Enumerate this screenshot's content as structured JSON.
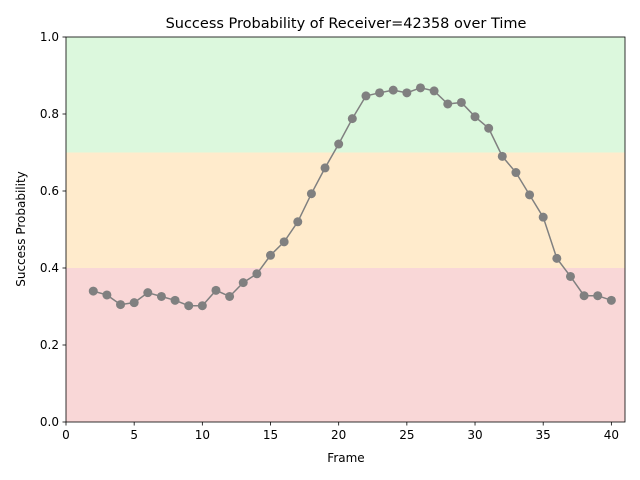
{
  "chart_data": {
    "type": "line",
    "title": "Success Probability of Receiver=42358 over Time",
    "xlabel": "Frame",
    "ylabel": "Success Probability",
    "xlim": [
      0,
      41
    ],
    "ylim": [
      0,
      1.0
    ],
    "x_ticks": [
      0,
      5,
      10,
      15,
      20,
      25,
      30,
      35,
      40
    ],
    "y_ticks": [
      0.0,
      0.2,
      0.4,
      0.6,
      0.8,
      1.0
    ],
    "x_tick_labels": [
      "0",
      "5",
      "10",
      "15",
      "20",
      "25",
      "30",
      "35",
      "40"
    ],
    "y_tick_labels": [
      "0.0",
      "0.2",
      "0.4",
      "0.6",
      "0.8",
      "1.0"
    ],
    "grid": false,
    "bands": [
      {
        "from": 0.0,
        "to": 0.4,
        "color": "#f9d7d7"
      },
      {
        "from": 0.4,
        "to": 0.7,
        "color": "#ffebcc"
      },
      {
        "from": 0.7,
        "to": 1.0,
        "color": "#dcf8dd"
      }
    ],
    "series": [
      {
        "color": "#808080",
        "x": [
          2,
          3,
          4,
          5,
          6,
          7,
          8,
          9,
          10,
          11,
          12,
          13,
          14,
          15,
          16,
          17,
          18,
          19,
          20,
          21,
          22,
          23,
          24,
          25,
          26,
          27,
          28,
          29,
          30,
          31,
          32,
          33,
          34,
          35,
          36,
          37,
          38,
          39,
          40
        ],
        "y": [
          0.34,
          0.33,
          0.305,
          0.31,
          0.336,
          0.326,
          0.316,
          0.302,
          0.302,
          0.342,
          0.326,
          0.362,
          0.385,
          0.433,
          0.468,
          0.52,
          0.593,
          0.66,
          0.722,
          0.788,
          0.847,
          0.855,
          0.862,
          0.855,
          0.868,
          0.86,
          0.826,
          0.83,
          0.793,
          0.763,
          0.69,
          0.648,
          0.59,
          0.532,
          0.425,
          0.378,
          0.328,
          0.328,
          0.316
        ]
      }
    ]
  }
}
